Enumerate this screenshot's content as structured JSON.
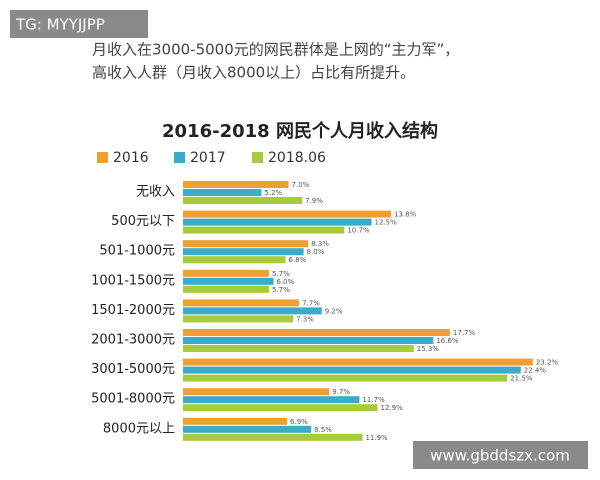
{
  "header": {
    "tag": "TG: MYYJJPP",
    "intro": [
      "月收入在3000-5000元的网民群体是上网的“主力军”，",
      "高收入人群（月收入8000以上）占比有所提升。"
    ]
  },
  "footer": {
    "site": "www.gbddszx.com"
  },
  "chart_data": {
    "type": "bar",
    "orientation": "horizontal",
    "title": "2016-2018  网民个人月收入结构",
    "categories": [
      "无收入",
      "500元以下",
      "501-1000元",
      "1001-1500元",
      "1501-2000元",
      "2001-3000元",
      "3001-5000元",
      "5001-8000元",
      "8000元以上"
    ],
    "series": [
      {
        "name": "2016",
        "color": "#f0a030",
        "values": [
          7.0,
          13.8,
          8.3,
          5.7,
          7.7,
          17.7,
          23.2,
          9.7,
          6.9
        ],
        "value_labels": [
          "7.0%",
          "13.8%",
          "8.3%",
          "5.7%",
          "7.7%",
          "17.7%",
          "23.2%",
          "9.7%",
          "6.9%"
        ]
      },
      {
        "name": "2017",
        "color": "#3aabc9",
        "values": [
          5.2,
          12.5,
          8.0,
          6.0,
          9.2,
          16.6,
          22.4,
          11.7,
          8.5
        ],
        "value_labels": [
          "5.2%",
          "12.5%",
          "8.0%",
          "6.0%",
          "9.2%",
          "16.6%",
          "22.4%",
          "11.7%",
          "8.5%"
        ]
      },
      {
        "name": "2018.06",
        "color": "#a6cc3c",
        "values": [
          7.9,
          10.7,
          6.8,
          5.7,
          7.3,
          15.3,
          21.5,
          12.9,
          11.9
        ],
        "value_labels": [
          "7.9%",
          "10.7%",
          "6.8%",
          "5.7%",
          "7.3%",
          "15.3%",
          "21.5%",
          "12.9%",
          "11.9%"
        ]
      }
    ],
    "xlim": [
      0,
      25
    ]
  }
}
